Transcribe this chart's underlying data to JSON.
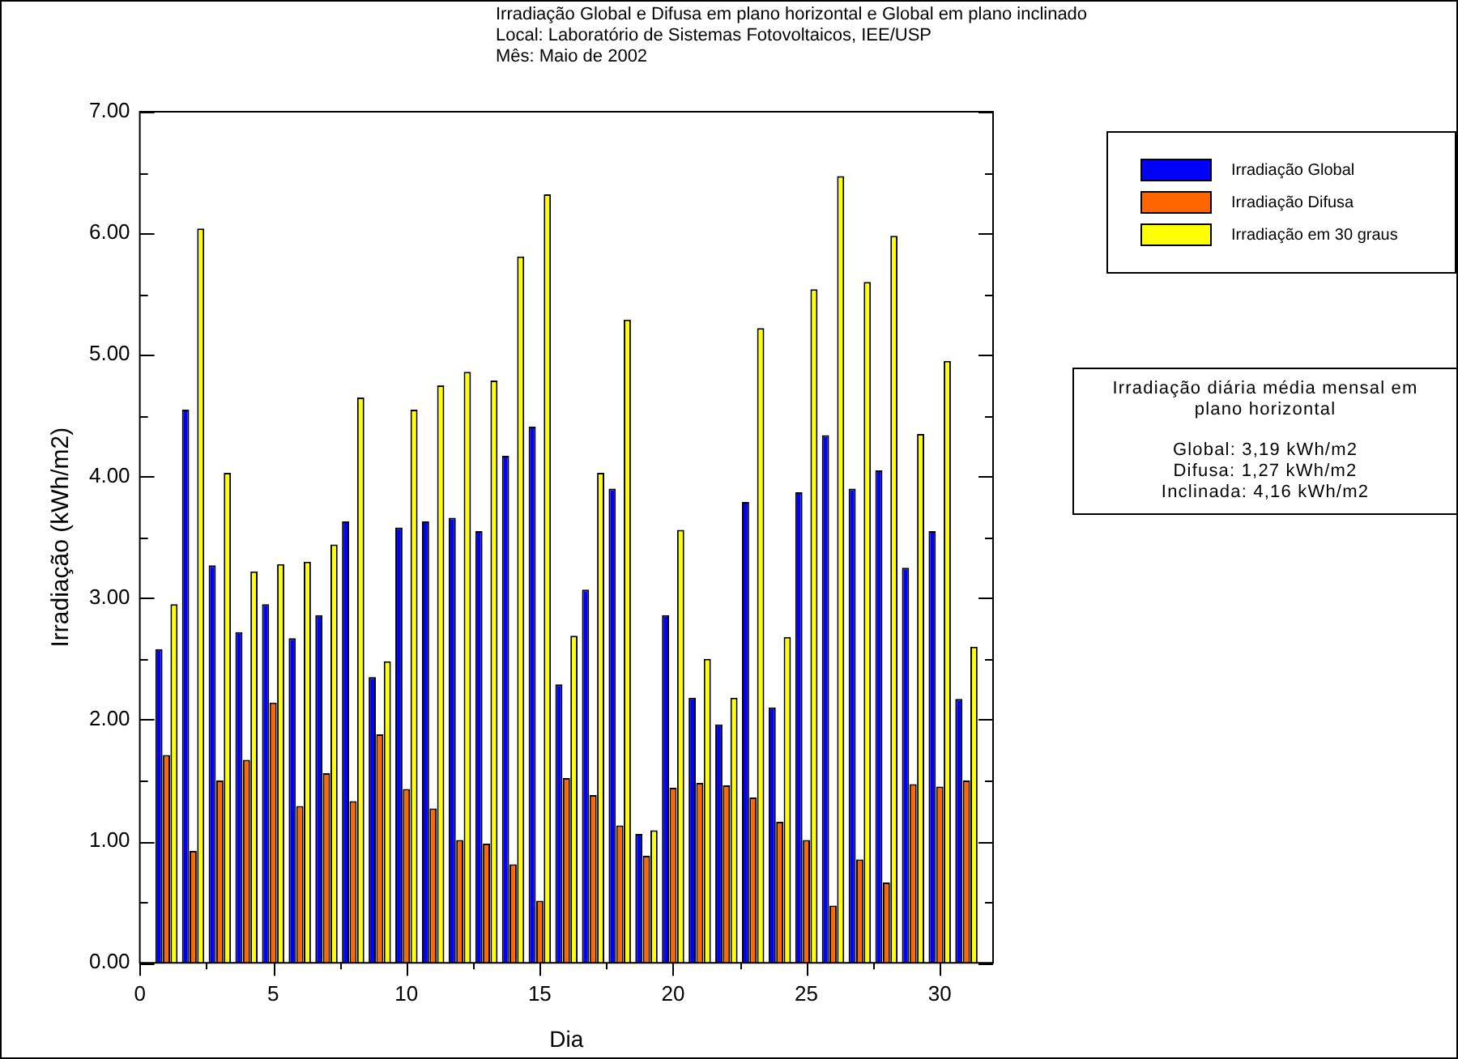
{
  "chart_data": {
    "type": "bar",
    "title": "Irradiação Global e Difusa em plano horizontal e Global em plano inclinado",
    "subtitle": "Local: Laboratório de Sistemas Fotovoltaicos, IEE/USP\nMês: Maio de 2002",
    "xlabel": "Dia",
    "ylabel": "Irradiação (kWh/m2)",
    "x": [
      1,
      2,
      3,
      4,
      5,
      6,
      7,
      8,
      9,
      10,
      11,
      12,
      13,
      14,
      15,
      16,
      17,
      18,
      19,
      20,
      21,
      22,
      23,
      24,
      25,
      26,
      27,
      28,
      29,
      30,
      31
    ],
    "series": [
      {
        "name": "Irradiação Global",
        "color": "#0000ff",
        "values": [
          2.58,
          4.55,
          3.27,
          2.72,
          2.95,
          2.67,
          2.86,
          3.63,
          2.35,
          3.58,
          3.63,
          3.66,
          3.55,
          4.17,
          4.41,
          2.29,
          3.07,
          3.9,
          1.06,
          2.86,
          2.18,
          1.96,
          3.79,
          2.1,
          3.87,
          4.34,
          3.9,
          4.05,
          3.25,
          3.55,
          2.17
        ]
      },
      {
        "name": "Irradiação Difusa",
        "color": "#ff6600",
        "values": [
          1.71,
          0.92,
          1.5,
          1.67,
          2.14,
          1.29,
          1.56,
          1.33,
          1.88,
          1.43,
          1.27,
          1.01,
          0.98,
          0.81,
          0.51,
          1.52,
          1.38,
          1.13,
          0.88,
          1.44,
          1.48,
          1.46,
          1.36,
          1.16,
          1.01,
          0.47,
          0.85,
          0.66,
          1.47,
          1.45,
          1.5
        ]
      },
      {
        "name": "Irradiação em 30 graus",
        "color": "#ffff00",
        "values": [
          2.95,
          6.04,
          4.03,
          3.22,
          3.28,
          3.3,
          3.44,
          4.65,
          2.48,
          4.55,
          4.75,
          4.86,
          4.79,
          5.81,
          6.32,
          2.69,
          4.03,
          5.29,
          1.09,
          3.56,
          2.5,
          2.18,
          5.22,
          2.68,
          5.54,
          6.47,
          5.6,
          5.98,
          4.35,
          4.95,
          2.6
        ]
      }
    ],
    "xlim": [
      0,
      32
    ],
    "xticks": [
      0,
      {
        "value": 2.5,
        "label": null
      },
      5,
      {
        "value": 7.5,
        "label": null
      },
      10,
      {
        "value": 12.5,
        "label": null
      },
      15,
      {
        "value": 17.5,
        "label": null
      },
      20,
      {
        "value": 22.5,
        "label": null
      },
      25,
      {
        "value": 27.5,
        "label": null
      },
      30
    ],
    "ylim": [
      0,
      7
    ],
    "yticks": [
      {
        "value": 0,
        "label": "0.00"
      },
      {
        "value": 0.5,
        "label": null
      },
      {
        "value": 1,
        "label": "1.00"
      },
      {
        "value": 1.5,
        "label": null
      },
      {
        "value": 2,
        "label": "2.00"
      },
      {
        "value": 2.5,
        "label": null
      },
      {
        "value": 3,
        "label": "3.00"
      },
      {
        "value": 3.5,
        "label": null
      },
      {
        "value": 4,
        "label": "4.00"
      },
      {
        "value": 4.5,
        "label": null
      },
      {
        "value": 5,
        "label": "5.00"
      },
      {
        "value": 5.5,
        "label": null
      },
      {
        "value": 6,
        "label": "6.00"
      },
      {
        "value": 6.5,
        "label": null
      },
      {
        "value": 7,
        "label": "7.00"
      }
    ],
    "grid": false,
    "legend": "right",
    "annotations": [
      "Irradiação diária média mensal em plano horizontal",
      "Global: 3,19 kWh/m2",
      "Difusa: 1,27 kWh/m2",
      "Inclinada: 4,16 kWh/m2"
    ]
  }
}
